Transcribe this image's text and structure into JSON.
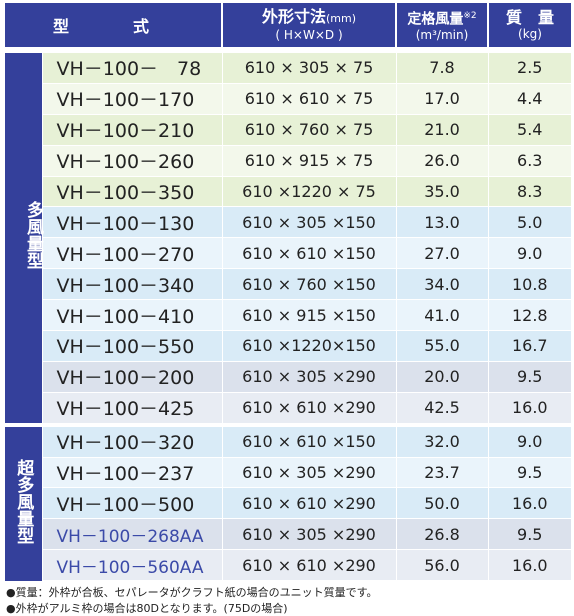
{
  "headers": {
    "type": "型　式",
    "dims": "外形寸法",
    "dims_unit": "(mm)",
    "dims_sub": "( H×W×D )",
    "air": "定格風量",
    "air_note": "※2",
    "air_unit": "(m³/min)",
    "weight": "質　量",
    "weight_unit": "(kg)"
  },
  "groups": [
    {
      "label": "多風量型",
      "rows": [
        {
          "model": "VH－100－　78",
          "dims": "610 × 305 ×  75",
          "air": "7.8",
          "weight": "2.5"
        },
        {
          "model": "VH－100－170",
          "dims": "610 × 610 ×  75",
          "air": "17.0",
          "weight": "4.4"
        },
        {
          "model": "VH－100－210",
          "dims": "610 × 760 ×  75",
          "air": "21.0",
          "weight": "5.4"
        },
        {
          "model": "VH－100－260",
          "dims": "610 × 915 ×  75",
          "air": "26.0",
          "weight": "6.3"
        },
        {
          "model": "VH－100－350",
          "dims": "610 ×1220 × 75",
          "air": "35.0",
          "weight": "8.3"
        },
        {
          "model": "VH－100－130",
          "dims": "610 × 305 ×150",
          "air": "13.0",
          "weight": "5.0"
        },
        {
          "model": "VH－100－270",
          "dims": "610 × 610 ×150",
          "air": "27.0",
          "weight": "9.0"
        },
        {
          "model": "VH－100－340",
          "dims": "610 × 760 ×150",
          "air": "34.0",
          "weight": "10.8"
        },
        {
          "model": "VH－100－410",
          "dims": "610 × 915 ×150",
          "air": "41.0",
          "weight": "12.8"
        },
        {
          "model": "VH－100－550",
          "dims": "610 ×1220×150",
          "air": "55.0",
          "weight": "16.7"
        },
        {
          "model": "VH－100－200",
          "dims": "610 × 305 ×290",
          "air": "20.0",
          "weight": "9.5"
        },
        {
          "model": "VH－100－425",
          "dims": "610 × 610 ×290",
          "air": "42.5",
          "weight": "16.0"
        }
      ]
    },
    {
      "label": "超多風量型",
      "rows": [
        {
          "model": "VH－100－320",
          "dims": "610 × 610 ×150",
          "air": "32.0",
          "weight": "9.0"
        },
        {
          "model": "VH－100－237",
          "dims": "610 × 305 ×290",
          "air": "23.7",
          "weight": "9.5"
        },
        {
          "model": "VH－100－500",
          "dims": "610 × 610 ×290",
          "air": "50.0",
          "weight": "16.0"
        },
        {
          "model": "VH－100－268AA",
          "dims": "610 × 305 ×290",
          "air": "26.8",
          "weight": "9.5"
        },
        {
          "model": "VH－100－560AA",
          "dims": "610 × 610 ×290",
          "air": "56.0",
          "weight": "16.0"
        }
      ]
    }
  ],
  "notes": [
    "●質量：外枠が合板、セパレータがクラフト紙の場合のユニット質量です。",
    "●外枠がアルミ枠の場合は80Dとなります。(75Dの場合)"
  ]
}
